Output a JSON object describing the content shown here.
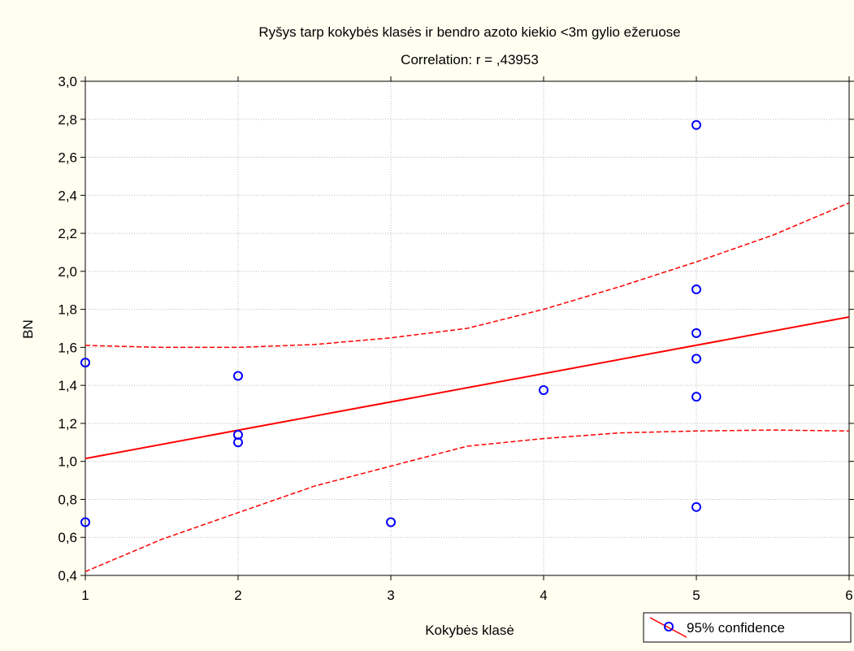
{
  "chart_data": {
    "type": "scatter",
    "title": "Ryšys tarp kokybės klasės ir bendro azoto kiekio <3m gylio ežeruose",
    "subtitle": "Correlation: r = ,43953",
    "xlabel": "Kokybės klasė",
    "ylabel": "BN",
    "xlim": [
      1,
      6
    ],
    "ylim": [
      0.4,
      3.0
    ],
    "x_ticks": [
      1,
      2,
      3,
      4,
      5,
      6
    ],
    "y_ticks": [
      0.4,
      0.6,
      0.8,
      1.0,
      1.2,
      1.4,
      1.6,
      1.8,
      2.0,
      2.2,
      2.4,
      2.6,
      2.8,
      3.0
    ],
    "y_tick_labels": [
      "0,4",
      "0,6",
      "0,8",
      "1,0",
      "1,2",
      "1,4",
      "1,6",
      "1,8",
      "2,0",
      "2,2",
      "2,4",
      "2,6",
      "2,8",
      "3,0"
    ],
    "x_tick_labels": [
      "1",
      "2",
      "3",
      "4",
      "5",
      "6"
    ],
    "grid": true,
    "legend": {
      "position": "bottom-right",
      "entries": [
        "95% confidence"
      ]
    },
    "points": [
      {
        "x": 1,
        "y": 1.52
      },
      {
        "x": 1,
        "y": 0.68
      },
      {
        "x": 2,
        "y": 1.45
      },
      {
        "x": 2,
        "y": 1.14
      },
      {
        "x": 2,
        "y": 1.1
      },
      {
        "x": 3,
        "y": 0.68
      },
      {
        "x": 4,
        "y": 1.375
      },
      {
        "x": 5,
        "y": 2.77
      },
      {
        "x": 5,
        "y": 1.905
      },
      {
        "x": 5,
        "y": 1.675
      },
      {
        "x": 5,
        "y": 1.54
      },
      {
        "x": 5,
        "y": 1.34
      },
      {
        "x": 5,
        "y": 0.76
      }
    ],
    "regression_line": {
      "x": [
        1,
        6
      ],
      "y": [
        1.015,
        1.76
      ]
    },
    "confidence_upper": {
      "x": [
        1,
        1.5,
        2,
        2.5,
        3,
        3.5,
        4,
        4.5,
        5,
        5.5,
        6
      ],
      "y": [
        1.61,
        1.6,
        1.6,
        1.615,
        1.65,
        1.7,
        1.8,
        1.92,
        2.05,
        2.19,
        2.36
      ]
    },
    "confidence_lower": {
      "x": [
        1,
        1.5,
        2,
        2.5,
        3,
        3.5,
        4,
        4.5,
        5,
        5.5,
        6
      ],
      "y": [
        0.42,
        0.59,
        0.73,
        0.87,
        0.975,
        1.08,
        1.12,
        1.15,
        1.16,
        1.165,
        1.16
      ]
    },
    "colors": {
      "background": "#fffef0",
      "plot_background": "#ffffff",
      "points": "#0000ff",
      "fit": "#ff0000",
      "grid": "#b8b8b8"
    }
  }
}
